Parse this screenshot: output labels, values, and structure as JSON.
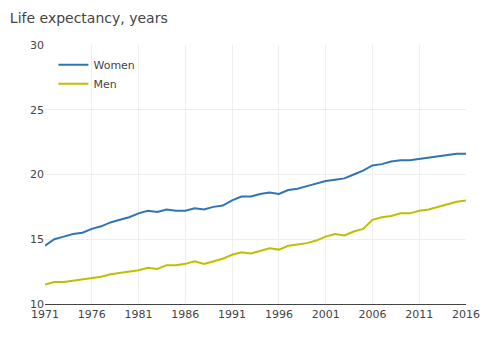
{
  "chart_data": {
    "type": "line",
    "title": "Life expectancy, years",
    "x": [
      1971,
      1972,
      1973,
      1974,
      1975,
      1976,
      1977,
      1978,
      1979,
      1980,
      1981,
      1982,
      1983,
      1984,
      1985,
      1986,
      1987,
      1988,
      1989,
      1990,
      1991,
      1992,
      1993,
      1994,
      1995,
      1996,
      1997,
      1998,
      1999,
      2000,
      2001,
      2002,
      2003,
      2004,
      2005,
      2006,
      2007,
      2008,
      2009,
      2010,
      2011,
      2012,
      2013,
      2014,
      2015,
      2016
    ],
    "series": [
      {
        "name": "Women",
        "color": "#2E75B6",
        "values": [
          14.5,
          15.0,
          15.2,
          15.4,
          15.5,
          15.8,
          16.0,
          16.3,
          16.5,
          16.7,
          17.0,
          17.2,
          17.1,
          17.3,
          17.2,
          17.2,
          17.4,
          17.3,
          17.5,
          17.6,
          18.0,
          18.3,
          18.3,
          18.5,
          18.6,
          18.5,
          18.8,
          18.9,
          19.1,
          19.3,
          19.5,
          19.6,
          19.7,
          20.0,
          20.3,
          20.7,
          20.8,
          21.0,
          21.1,
          21.1,
          21.2,
          21.3,
          21.4,
          21.5,
          21.6,
          21.6
        ]
      },
      {
        "name": "Men",
        "color": "#BFBF00",
        "values": [
          11.5,
          11.7,
          11.7,
          11.8,
          11.9,
          12.0,
          12.1,
          12.3,
          12.4,
          12.5,
          12.6,
          12.8,
          12.7,
          13.0,
          13.0,
          13.1,
          13.3,
          13.1,
          13.3,
          13.5,
          13.8,
          14.0,
          13.9,
          14.1,
          14.3,
          14.2,
          14.5,
          14.6,
          14.7,
          14.9,
          15.2,
          15.4,
          15.3,
          15.6,
          15.8,
          16.5,
          16.7,
          16.8,
          17.0,
          17.0,
          17.2,
          17.3,
          17.5,
          17.7,
          17.9,
          18.0
        ]
      }
    ],
    "xlim": [
      1971,
      2016
    ],
    "ylim": [
      10,
      30
    ],
    "xticks": [
      1971,
      1976,
      1981,
      1986,
      1991,
      1996,
      2001,
      2006,
      2011,
      2016
    ],
    "yticks": [
      10,
      15,
      20,
      25,
      30
    ],
    "grid": true,
    "legend": "upper left"
  }
}
